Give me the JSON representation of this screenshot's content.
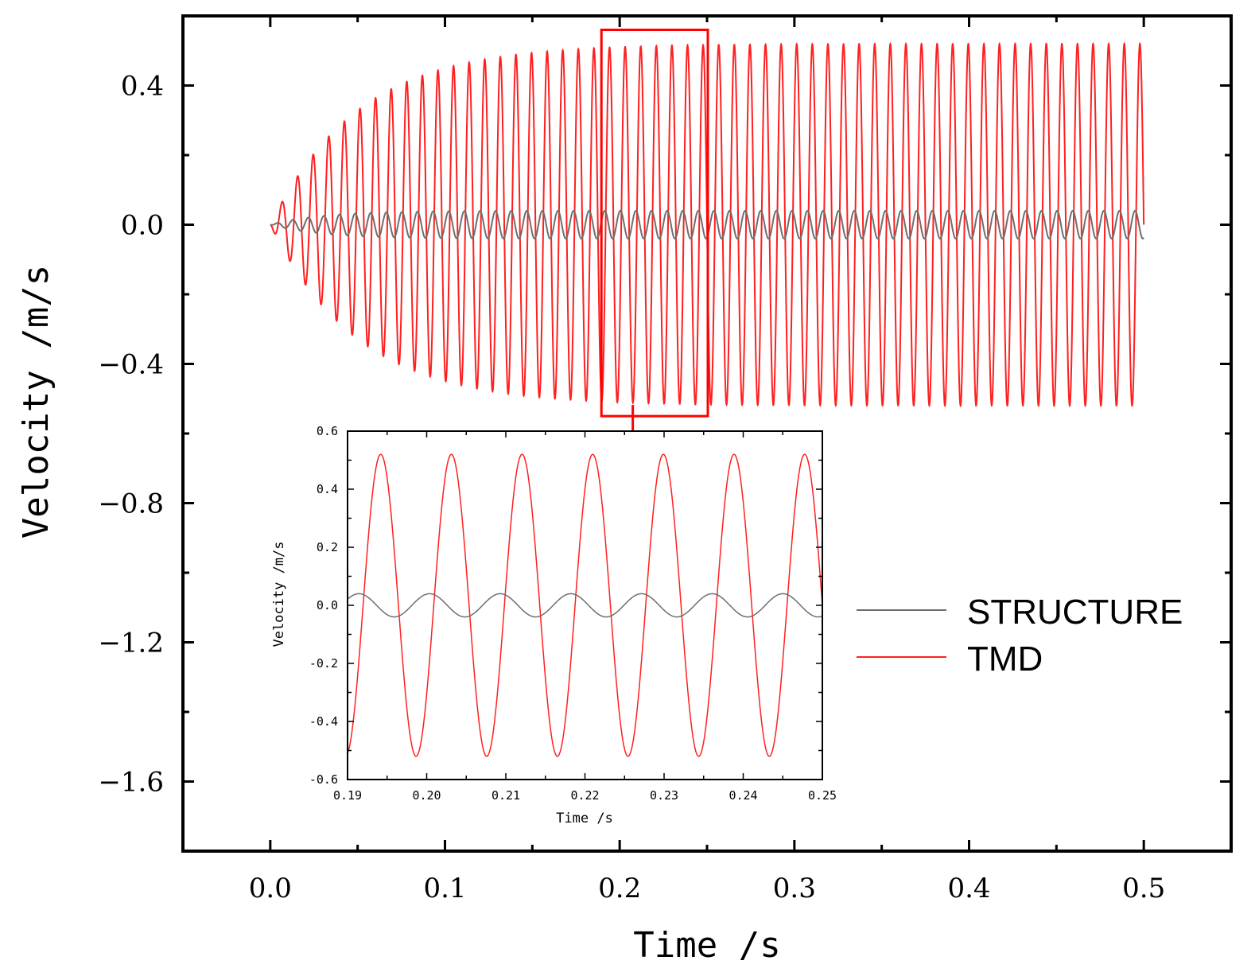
{
  "chart_data": [
    {
      "id": "main",
      "type": "line",
      "xlabel": "Time /s",
      "ylabel": "Velocity /m/s",
      "xlim": [
        -0.05,
        0.55
      ],
      "ylim": [
        -1.8,
        0.6
      ],
      "xticks": [
        0.0,
        0.1,
        0.2,
        0.3,
        0.4,
        0.5
      ],
      "xtick_labels": [
        "0.0",
        "0.1",
        "0.2",
        "0.3",
        "0.4",
        "0.5"
      ],
      "yticks": [
        0.4,
        0.0,
        -0.4,
        -0.8,
        -1.2,
        -1.6
      ],
      "ytick_labels": [
        "0.4",
        "0.0",
        "−0.4",
        "−0.8",
        "−1.2",
        "−1.6"
      ],
      "legend": {
        "location": "right",
        "entries": [
          "STRUCTURE",
          "TMD"
        ]
      },
      "series": [
        {
          "name": "STRUCTURE",
          "color": "#6e6e6e",
          "model": "steady-sine",
          "amplitude": 0.04,
          "frequency_hz": 112,
          "ramp_time_s": 0.03,
          "x_range": [
            0.0,
            0.5
          ]
        },
        {
          "name": "TMD",
          "color": "#ff2020",
          "model": "growing-sine",
          "amplitude": 0.52,
          "frequency_hz": 112,
          "growth_time_s": 0.05,
          "x_range": [
            0.0,
            0.5
          ]
        }
      ],
      "zoom_box": {
        "x_range": [
          0.19,
          0.25
        ],
        "y_range": [
          -0.55,
          0.56
        ],
        "color": "#ff0000"
      }
    },
    {
      "id": "inset",
      "type": "line",
      "xlabel": "Time /s",
      "ylabel": "Velocity /m/s",
      "xlim": [
        0.19,
        0.25
      ],
      "ylim": [
        -0.6,
        0.6
      ],
      "xticks": [
        0.19,
        0.2,
        0.21,
        0.22,
        0.23,
        0.24,
        0.25
      ],
      "xtick_labels": [
        "0.19",
        "0.20",
        "0.21",
        "0.22",
        "0.23",
        "0.24",
        "0.25"
      ],
      "yticks": [
        0.6,
        0.4,
        0.2,
        0.0,
        -0.2,
        -0.4,
        -0.6
      ],
      "ytick_labels": [
        "0.6",
        "0.4",
        "0.2",
        "0.0",
        "-0.2",
        "-0.4",
        "-0.6"
      ],
      "series": [
        {
          "name": "STRUCTURE",
          "color": "#6e6e6e",
          "amplitude": 0.04,
          "frequency_hz": 112
        },
        {
          "name": "TMD",
          "color": "#ff2020",
          "amplitude": 0.52,
          "frequency_hz": 112
        }
      ]
    }
  ]
}
